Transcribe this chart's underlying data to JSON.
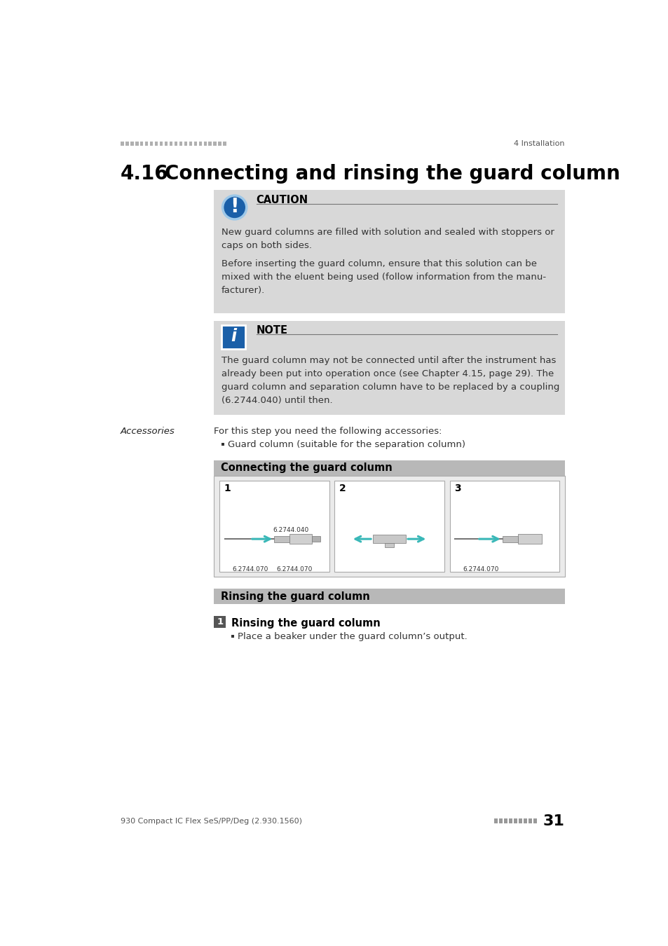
{
  "page_bg": "#ffffff",
  "header_dots_color": "#b0b0b0",
  "header_right_text": "4 Installation",
  "section_number": "4.16",
  "section_title": "Connecting and rinsing the guard column",
  "caution_bg": "#d8d8d8",
  "caution_title": "CAUTION",
  "caution_icon_bg": "#1a5fa8",
  "caution_text1": "New guard columns are filled with solution and sealed with stoppers or\ncaps on both sides.",
  "caution_text2": "Before inserting the guard column, ensure that this solution can be\nmixed with the eluent being used (follow information from the manu-\nfacturer).",
  "note_bg": "#d8d8d8",
  "note_title": "NOTE",
  "note_icon_bg": "#1a5fa8",
  "note_text": "The guard column may not be connected until after the instrument has\nalready been put into operation once (see Chapter 4.15, page 29). The\nguard column and separation column have to be replaced by a coupling\n(6.2744.040) until then.",
  "accessories_label": "Accessories",
  "accessories_intro": "For this step you need the following accessories:",
  "accessories_item": "Guard column (suitable for the separation column)",
  "connecting_title": "Connecting the guard column",
  "section_header_bg": "#b8b8b8",
  "steps_bg": "#f0f0f0",
  "step1_label_top": "6.2744.040",
  "step1_label_bot_left": "6.2744.070",
  "step1_label_bot_right": "6.2744.070",
  "step3_label": "6.2744.070",
  "rinsing_title": "Rinsing the guard column",
  "rinsing_step_num": "1",
  "rinsing_step_title": "Rinsing the guard column",
  "rinsing_bullet": "Place a beaker under the guard column’s output.",
  "footer_left": "930 Compact IC Flex SeS/PP/Deg (2.930.1560)",
  "footer_page": "31",
  "footer_dots_color": "#999999",
  "teal_color": "#3ab8b8",
  "dark_blue": "#1a5fa8",
  "text_dark": "#222222",
  "text_body": "#333333"
}
